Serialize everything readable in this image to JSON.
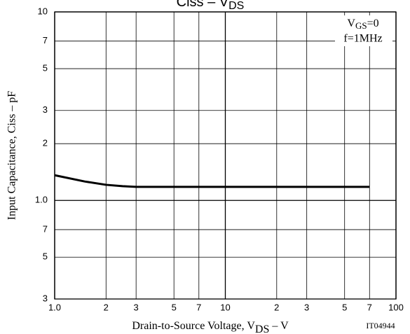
{
  "chart_data": {
    "type": "line",
    "title": {
      "text": "Ciss – V",
      "sub": "DS"
    },
    "x_label": {
      "text": "Drain-to-Source Voltage, V",
      "sub": "DS",
      "suffix": " – V"
    },
    "y_label": "Input Capacitance, Ciss – pF",
    "annotations": {
      "condition1": {
        "text": "V",
        "sub": "GS",
        "suffix": "=0"
      },
      "condition2": "f=1MHz",
      "code": "IT04944"
    },
    "x": [
      1,
      1.5,
      2,
      2.5,
      3,
      5,
      10,
      20,
      50,
      70
    ],
    "series": [
      {
        "name": "Ciss",
        "color": "#000000",
        "values": [
          1.36,
          1.26,
          1.21,
          1.19,
          1.18,
          1.18,
          1.18,
          1.18,
          1.18,
          1.18
        ]
      }
    ],
    "xlim": [
      1,
      100
    ],
    "ylim": [
      0.3,
      10
    ],
    "xlog": true,
    "ylog": true,
    "grid": true,
    "xticks": [
      {
        "value": 1,
        "label": "1.0"
      },
      2,
      3,
      5,
      7,
      10,
      {
        "value": 20,
        "label": "2"
      },
      {
        "value": 30,
        "label": "3"
      },
      {
        "value": 50,
        "label": "5"
      },
      {
        "value": 70,
        "label": "7"
      },
      100
    ],
    "yticks": [
      {
        "value": 0.3,
        "label": "3"
      },
      {
        "value": 0.5,
        "label": "5"
      },
      {
        "value": 0.7,
        "label": "7"
      },
      {
        "value": 1,
        "label": "1.0"
      },
      2,
      3,
      5,
      7,
      10
    ]
  }
}
